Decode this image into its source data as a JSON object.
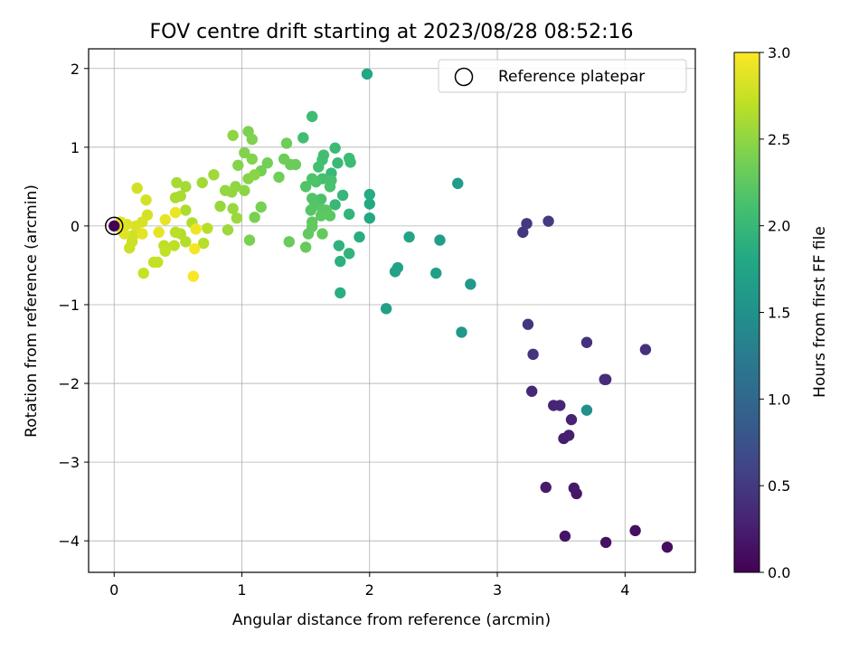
{
  "chart_data": {
    "type": "scatter",
    "title": "FOV centre drift starting at 2023/08/28 08:52:16",
    "xlabel": "Angular distance from reference (arcmin)",
    "ylabel": "Rotation from reference (arcmin)",
    "xlim": [
      -0.2,
      4.55
    ],
    "ylim": [
      -4.4,
      2.25
    ],
    "xticks": [
      "0",
      "1",
      "2",
      "3",
      "4"
    ],
    "yticks": [
      "2",
      "1",
      "0",
      "−1",
      "−2",
      "−3",
      "−4"
    ],
    "grid": true,
    "legend": {
      "position": "top-right",
      "entries": [
        "Reference platepar"
      ]
    },
    "reference": {
      "x": 0,
      "y": 0
    },
    "colorbar": {
      "label": "Hours from first FF file",
      "colormap": "viridis",
      "range": [
        0.0,
        3.0
      ],
      "ticks": [
        "0.0",
        "0.5",
        "1.0",
        "1.5",
        "2.0",
        "2.5",
        "3.0"
      ]
    },
    "points": [
      {
        "x": 4.33,
        "y": -4.08,
        "c": 0.1
      },
      {
        "x": 4.08,
        "y": -3.87,
        "c": 0.12
      },
      {
        "x": 3.85,
        "y": -4.02,
        "c": 0.14
      },
      {
        "x": 3.53,
        "y": -3.94,
        "c": 0.16
      },
      {
        "x": 3.62,
        "y": -3.4,
        "c": 0.18
      },
      {
        "x": 3.6,
        "y": -3.33,
        "c": 0.2
      },
      {
        "x": 3.38,
        "y": -3.32,
        "c": 0.22
      },
      {
        "x": 3.52,
        "y": -2.7,
        "c": 0.24
      },
      {
        "x": 3.56,
        "y": -2.66,
        "c": 0.26
      },
      {
        "x": 3.58,
        "y": -2.46,
        "c": 0.28
      },
      {
        "x": 3.44,
        "y": -2.28,
        "c": 0.3
      },
      {
        "x": 3.49,
        "y": -2.28,
        "c": 0.32
      },
      {
        "x": 3.27,
        "y": -2.1,
        "c": 0.34
      },
      {
        "x": 3.85,
        "y": -1.95,
        "c": 0.36
      },
      {
        "x": 3.84,
        "y": -1.95,
        "c": 0.38
      },
      {
        "x": 4.16,
        "y": -1.57,
        "c": 0.4
      },
      {
        "x": 3.7,
        "y": -1.48,
        "c": 0.42
      },
      {
        "x": 3.28,
        "y": -1.63,
        "c": 0.44
      },
      {
        "x": 3.24,
        "y": -1.25,
        "c": 0.46
      },
      {
        "x": 3.2,
        "y": -0.08,
        "c": 0.48
      },
      {
        "x": 3.23,
        "y": 0.03,
        "c": 0.5
      },
      {
        "x": 3.4,
        "y": 0.06,
        "c": 0.52
      },
      {
        "x": 3.7,
        "y": -2.34,
        "c": 1.5
      },
      {
        "x": 2.72,
        "y": -1.35,
        "c": 1.6
      },
      {
        "x": 2.79,
        "y": -0.74,
        "c": 1.62
      },
      {
        "x": 2.69,
        "y": 0.54,
        "c": 1.64
      },
      {
        "x": 2.55,
        "y": -0.18,
        "c": 1.66
      },
      {
        "x": 2.52,
        "y": -0.6,
        "c": 1.68
      },
      {
        "x": 2.13,
        "y": -1.05,
        "c": 1.7
      },
      {
        "x": 2.2,
        "y": -0.58,
        "c": 1.72
      },
      {
        "x": 2.22,
        "y": -0.53,
        "c": 1.74
      },
      {
        "x": 2.31,
        "y": -0.14,
        "c": 1.76
      },
      {
        "x": 1.98,
        "y": 1.93,
        "c": 1.78
      },
      {
        "x": 2.0,
        "y": 0.1,
        "c": 1.8
      },
      {
        "x": 2.0,
        "y": 0.28,
        "c": 1.82
      },
      {
        "x": 2.0,
        "y": 0.4,
        "c": 1.84
      },
      {
        "x": 1.92,
        "y": -0.14,
        "c": 1.86
      },
      {
        "x": 1.77,
        "y": -0.85,
        "c": 1.88
      },
      {
        "x": 1.77,
        "y": -0.45,
        "c": 1.9
      },
      {
        "x": 1.76,
        "y": -0.25,
        "c": 1.92
      },
      {
        "x": 1.84,
        "y": -0.35,
        "c": 1.94
      },
      {
        "x": 1.84,
        "y": 0.15,
        "c": 1.96
      },
      {
        "x": 1.79,
        "y": 0.39,
        "c": 1.98
      },
      {
        "x": 1.73,
        "y": 0.27,
        "c": 2.0
      },
      {
        "x": 1.7,
        "y": 0.67,
        "c": 2.01
      },
      {
        "x": 1.75,
        "y": 0.8,
        "c": 2.02
      },
      {
        "x": 1.73,
        "y": 0.99,
        "c": 2.03
      },
      {
        "x": 1.84,
        "y": 0.86,
        "c": 2.04
      },
      {
        "x": 1.85,
        "y": 0.81,
        "c": 2.05
      },
      {
        "x": 1.55,
        "y": 1.39,
        "c": 2.06
      },
      {
        "x": 1.48,
        "y": 1.12,
        "c": 2.07
      },
      {
        "x": 1.63,
        "y": 0.84,
        "c": 2.08
      },
      {
        "x": 1.64,
        "y": 0.9,
        "c": 2.09
      },
      {
        "x": 1.6,
        "y": 0.75,
        "c": 2.1
      },
      {
        "x": 1.63,
        "y": 0.6,
        "c": 2.11
      },
      {
        "x": 1.7,
        "y": 0.58,
        "c": 2.12
      },
      {
        "x": 1.69,
        "y": 0.5,
        "c": 2.13
      },
      {
        "x": 1.62,
        "y": 0.34,
        "c": 2.14
      },
      {
        "x": 1.58,
        "y": 0.56,
        "c": 2.15
      },
      {
        "x": 1.55,
        "y": 0.6,
        "c": 2.16
      },
      {
        "x": 1.5,
        "y": 0.5,
        "c": 2.17
      },
      {
        "x": 1.55,
        "y": 0.35,
        "c": 2.18
      },
      {
        "x": 1.57,
        "y": 0.27,
        "c": 2.19
      },
      {
        "x": 1.54,
        "y": 0.2,
        "c": 2.2
      },
      {
        "x": 1.63,
        "y": 0.21,
        "c": 2.21
      },
      {
        "x": 1.66,
        "y": 0.2,
        "c": 2.22
      },
      {
        "x": 1.69,
        "y": 0.13,
        "c": 2.23
      },
      {
        "x": 1.62,
        "y": 0.13,
        "c": 2.24
      },
      {
        "x": 1.55,
        "y": 0.05,
        "c": 2.25
      },
      {
        "x": 1.55,
        "y": -0.01,
        "c": 2.26
      },
      {
        "x": 1.52,
        "y": -0.1,
        "c": 2.27
      },
      {
        "x": 1.63,
        "y": -0.1,
        "c": 2.28
      },
      {
        "x": 1.5,
        "y": -0.27,
        "c": 2.29
      },
      {
        "x": 1.37,
        "y": -0.2,
        "c": 2.3
      },
      {
        "x": 1.42,
        "y": 0.78,
        "c": 2.31
      },
      {
        "x": 1.38,
        "y": 0.78,
        "c": 2.32
      },
      {
        "x": 1.33,
        "y": 0.85,
        "c": 2.33
      },
      {
        "x": 1.35,
        "y": 1.05,
        "c": 2.34
      },
      {
        "x": 1.29,
        "y": 0.62,
        "c": 2.35
      },
      {
        "x": 1.2,
        "y": 0.8,
        "c": 2.36
      },
      {
        "x": 1.15,
        "y": 0.7,
        "c": 2.37
      },
      {
        "x": 1.15,
        "y": 0.24,
        "c": 2.38
      },
      {
        "x": 1.1,
        "y": 0.11,
        "c": 2.39
      },
      {
        "x": 1.06,
        "y": -0.18,
        "c": 2.4
      },
      {
        "x": 1.05,
        "y": 1.2,
        "c": 2.41
      },
      {
        "x": 1.08,
        "y": 1.1,
        "c": 2.42
      },
      {
        "x": 1.02,
        "y": 0.93,
        "c": 2.43
      },
      {
        "x": 1.08,
        "y": 0.85,
        "c": 2.44
      },
      {
        "x": 0.97,
        "y": 0.77,
        "c": 2.45
      },
      {
        "x": 1.05,
        "y": 0.6,
        "c": 2.46
      },
      {
        "x": 1.1,
        "y": 0.65,
        "c": 2.47
      },
      {
        "x": 1.02,
        "y": 0.45,
        "c": 2.48
      },
      {
        "x": 0.93,
        "y": 1.15,
        "c": 2.49
      },
      {
        "x": 0.95,
        "y": 0.5,
        "c": 2.5
      },
      {
        "x": 0.92,
        "y": 0.43,
        "c": 2.51
      },
      {
        "x": 0.87,
        "y": 0.45,
        "c": 2.52
      },
      {
        "x": 0.83,
        "y": 0.25,
        "c": 2.53
      },
      {
        "x": 0.93,
        "y": 0.22,
        "c": 2.54
      },
      {
        "x": 0.96,
        "y": 0.1,
        "c": 2.55
      },
      {
        "x": 0.89,
        "y": -0.05,
        "c": 2.56
      },
      {
        "x": 0.78,
        "y": 0.65,
        "c": 2.57
      },
      {
        "x": 0.69,
        "y": 0.55,
        "c": 2.58
      },
      {
        "x": 0.56,
        "y": 0.5,
        "c": 2.59
      },
      {
        "x": 0.49,
        "y": 0.55,
        "c": 2.6
      },
      {
        "x": 0.52,
        "y": 0.38,
        "c": 2.61
      },
      {
        "x": 0.48,
        "y": 0.36,
        "c": 2.62
      },
      {
        "x": 0.56,
        "y": 0.2,
        "c": 2.63
      },
      {
        "x": 0.61,
        "y": 0.04,
        "c": 2.64
      },
      {
        "x": 0.52,
        "y": -0.1,
        "c": 2.65
      },
      {
        "x": 0.56,
        "y": -0.2,
        "c": 2.66
      },
      {
        "x": 0.7,
        "y": -0.22,
        "c": 2.67
      },
      {
        "x": 0.73,
        "y": -0.03,
        "c": 2.68
      },
      {
        "x": 0.48,
        "y": -0.08,
        "c": 2.69
      },
      {
        "x": 0.47,
        "y": -0.25,
        "c": 2.7
      },
      {
        "x": 0.39,
        "y": -0.25,
        "c": 2.71
      },
      {
        "x": 0.4,
        "y": -0.32,
        "c": 2.72
      },
      {
        "x": 0.34,
        "y": -0.46,
        "c": 2.73
      },
      {
        "x": 0.31,
        "y": -0.46,
        "c": 2.74
      },
      {
        "x": 0.23,
        "y": -0.6,
        "c": 2.75
      },
      {
        "x": 0.14,
        "y": -0.2,
        "c": 2.76
      },
      {
        "x": 0.12,
        "y": -0.28,
        "c": 2.77
      },
      {
        "x": 0.15,
        "y": -0.12,
        "c": 2.78
      },
      {
        "x": 0.18,
        "y": 0.48,
        "c": 2.79
      },
      {
        "x": 0.25,
        "y": 0.33,
        "c": 2.8
      },
      {
        "x": 0.26,
        "y": 0.14,
        "c": 2.81
      },
      {
        "x": 0.22,
        "y": 0.05,
        "c": 2.82
      },
      {
        "x": 0.17,
        "y": 0.0,
        "c": 2.83
      },
      {
        "x": 0.1,
        "y": 0.02,
        "c": 2.84
      },
      {
        "x": 0.08,
        "y": -0.1,
        "c": 2.85
      },
      {
        "x": 0.05,
        "y": 0.05,
        "c": 2.86
      },
      {
        "x": 0.06,
        "y": -0.05,
        "c": 2.87
      },
      {
        "x": 0.22,
        "y": -0.1,
        "c": 2.88
      },
      {
        "x": 0.35,
        "y": -0.08,
        "c": 2.89
      },
      {
        "x": 0.4,
        "y": 0.08,
        "c": 2.9
      },
      {
        "x": 0.48,
        "y": 0.17,
        "c": 2.92
      },
      {
        "x": 0.64,
        "y": -0.04,
        "c": 2.94
      },
      {
        "x": 0.63,
        "y": -0.29,
        "c": 2.96
      },
      {
        "x": 0.62,
        "y": -0.64,
        "c": 2.98
      },
      {
        "x": 0.0,
        "y": 0.0,
        "c": 0.0
      }
    ]
  }
}
